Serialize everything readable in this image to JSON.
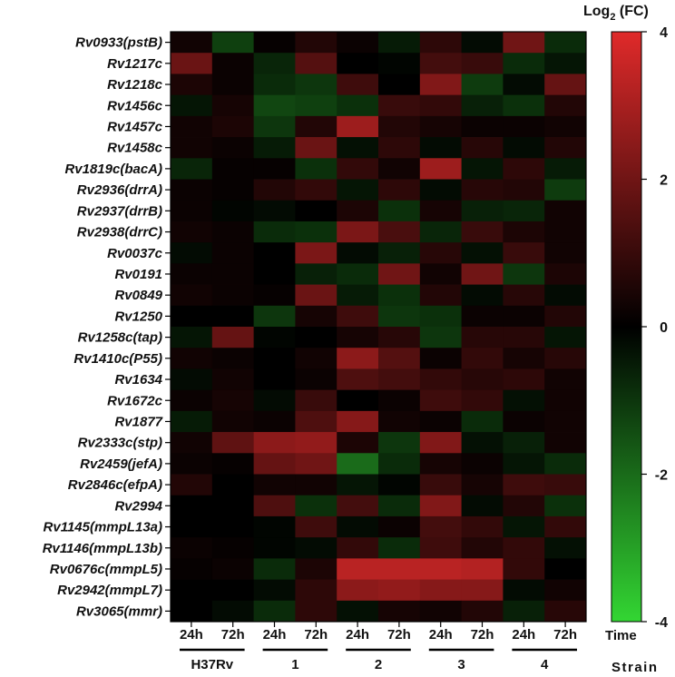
{
  "chart_data": {
    "type": "heatmap",
    "colorbar_title": "Log",
    "colorbar_title_sub": "2",
    "colorbar_title_suffix": " (FC)",
    "colorbar_ticks": [
      "4",
      "2",
      "0",
      "-2",
      "-4"
    ],
    "colorbar_tick_values": [
      4,
      2,
      0,
      -2,
      -4
    ],
    "color_range": [
      -4,
      4
    ],
    "colors": {
      "high": "#e02a2a",
      "mid": "#000000",
      "low": "#33d633"
    },
    "x_title": "Time",
    "strain_title": "Strain",
    "time_labels": [
      "24h",
      "72h",
      "24h",
      "72h",
      "24h",
      "72h",
      "24h",
      "72h",
      "24h",
      "72h"
    ],
    "strains": [
      "H37Rv",
      "1",
      "2",
      "3",
      "4"
    ],
    "rows": [
      "Rv0933(pstB)",
      "Rv1217c",
      "Rv1218c",
      "Rv1456c",
      "Rv1457c",
      "Rv1458c",
      "Rv1819c(bacA)",
      "Rv2936(drrA)",
      "Rv2937(drrB)",
      "Rv2938(drrC)",
      "Rv0037c",
      "Rv0191",
      "Rv0849",
      "Rv1250",
      "Rv1258c(tap)",
      "Rv1410c(P55)",
      "Rv1634",
      "Rv1672c",
      "Rv1877",
      "Rv2333c(stp)",
      "Rv2459(jefA)",
      "Rv2846c(efpA)",
      "Rv2994",
      "Rv1145(mmpL13a)",
      "Rv1146(mmpL13b)",
      "Rv0676c(mmpL5)",
      "Rv2942(mmpL7)",
      "Rv3065(mmr)"
    ],
    "values": [
      [
        0.3,
        -1.2,
        0.1,
        0.6,
        0.2,
        -0.5,
        0.8,
        -0.2,
        2.0,
        -0.8
      ],
      [
        1.9,
        0.2,
        -0.7,
        1.5,
        0.0,
        -0.1,
        1.2,
        1.0,
        -0.8,
        -0.4
      ],
      [
        0.5,
        0.2,
        -0.8,
        -1.0,
        1.1,
        0.0,
        2.3,
        -1.1,
        -0.2,
        1.8
      ],
      [
        -0.4,
        0.4,
        -1.3,
        -1.2,
        -0.9,
        1.0,
        0.9,
        -0.6,
        -0.9,
        0.6
      ],
      [
        0.3,
        0.5,
        -1.0,
        0.6,
        2.8,
        0.6,
        0.4,
        0.2,
        0.2,
        0.3
      ],
      [
        0.3,
        0.2,
        -0.5,
        1.9,
        -0.3,
        0.8,
        -0.2,
        0.7,
        -0.2,
        0.6
      ],
      [
        -0.7,
        0.1,
        0.1,
        -0.9,
        0.9,
        0.3,
        2.8,
        -0.4,
        0.8,
        -0.5
      ],
      [
        0.2,
        0.1,
        0.6,
        0.9,
        -0.4,
        0.8,
        -0.2,
        0.7,
        0.6,
        -1.1
      ],
      [
        0.2,
        -0.1,
        -0.2,
        0.0,
        0.5,
        -0.9,
        0.4,
        -0.6,
        -0.7,
        0.3
      ],
      [
        0.3,
        0.2,
        -0.8,
        -0.9,
        2.2,
        1.3,
        -0.7,
        1.0,
        0.5,
        0.3
      ],
      [
        -0.2,
        0.2,
        0.0,
        2.2,
        -0.2,
        -0.6,
        0.7,
        -0.3,
        1.0,
        0.3
      ],
      [
        0.2,
        0.2,
        0.0,
        -0.6,
        -0.8,
        2.0,
        0.3,
        2.0,
        -1.0,
        0.5
      ],
      [
        0.3,
        0.2,
        0.1,
        1.9,
        -0.5,
        -0.9,
        0.6,
        -0.2,
        0.7,
        -0.2
      ],
      [
        0.0,
        0.0,
        -1.0,
        0.4,
        1.1,
        -1.0,
        -0.9,
        0.2,
        0.2,
        0.6
      ],
      [
        -0.4,
        1.8,
        -0.1,
        0.0,
        0.4,
        0.7,
        -1.0,
        0.7,
        0.7,
        -0.4
      ],
      [
        0.3,
        0.2,
        0.0,
        0.3,
        2.5,
        1.5,
        0.2,
        0.9,
        0.4,
        0.7
      ],
      [
        -0.2,
        0.3,
        0.0,
        0.2,
        1.4,
        1.2,
        0.9,
        0.7,
        0.8,
        0.3
      ],
      [
        0.2,
        0.4,
        -0.2,
        1.0,
        0.0,
        0.2,
        1.1,
        0.9,
        -0.3,
        0.3
      ],
      [
        -0.5,
        0.3,
        0.2,
        1.4,
        2.4,
        0.3,
        0.2,
        -0.8,
        0.2,
        0.3
      ],
      [
        0.3,
        1.7,
        2.5,
        2.6,
        0.5,
        -1.0,
        2.3,
        -0.3,
        -0.6,
        0.3
      ],
      [
        0.2,
        0.1,
        1.8,
        2.0,
        -2.0,
        -0.8,
        0.4,
        0.2,
        -0.4,
        -0.8
      ],
      [
        0.6,
        0.0,
        0.3,
        0.3,
        -0.4,
        -0.1,
        1.0,
        0.4,
        1.1,
        1.0
      ],
      [
        0.0,
        0.0,
        1.4,
        -0.9,
        1.2,
        -0.8,
        2.3,
        -0.2,
        0.6,
        -0.9
      ],
      [
        0.0,
        0.0,
        -0.1,
        1.1,
        -0.2,
        0.2,
        1.2,
        0.9,
        -0.4,
        0.9
      ],
      [
        0.2,
        0.1,
        -0.1,
        -0.2,
        0.9,
        -0.8,
        1.1,
        0.6,
        0.9,
        -0.3
      ],
      [
        0.1,
        0.2,
        -0.8,
        0.5,
        3.3,
        3.3,
        3.3,
        3.2,
        0.9,
        0.0
      ],
      [
        0.0,
        0.0,
        -0.2,
        0.8,
        2.5,
        2.6,
        2.4,
        2.4,
        -0.2,
        0.3
      ],
      [
        0.0,
        -0.2,
        -0.8,
        0.8,
        -0.3,
        0.4,
        0.3,
        0.6,
        -0.6,
        0.7
      ]
    ]
  }
}
